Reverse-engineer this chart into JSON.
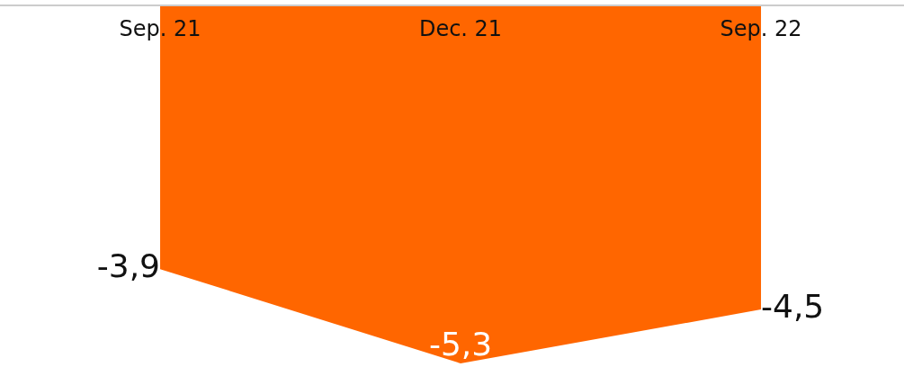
{
  "chart_data": {
    "type": "area",
    "categories": [
      "Sep. 21",
      "Dec. 21",
      "Sep. 22"
    ],
    "values": [
      -3.9,
      -5.3,
      -4.5
    ],
    "color": "#ff6600",
    "value_labels": [
      "-3,9",
      "-5,3",
      "-4,5"
    ],
    "legend": false,
    "tick_labels": "x"
  }
}
